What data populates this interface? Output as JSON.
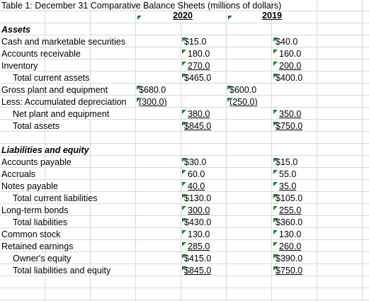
{
  "title": "Table 1: December 31 Comparative Balance Sheets (millions of dollars)",
  "headers": {
    "y2020": "2020",
    "y2019": "2019"
  },
  "sections": {
    "assets": "Assets",
    "liabilities_equity": "Liabilities and equity"
  },
  "rows": {
    "cash": {
      "label": "Cash and marketable securities",
      "v2020": "$15.0",
      "v2019": "$40.0"
    },
    "ar": {
      "label": "Accounts receivable",
      "v2020": "180.0",
      "v2019": "160.0"
    },
    "inventory": {
      "label": "Inventory",
      "v2020": "270.0",
      "v2019": "200.0"
    },
    "tca": {
      "label": "Total current assets",
      "v2020": "$465.0",
      "v2019": "$400.0"
    },
    "gpe": {
      "label": "Gross plant and equipment",
      "v2020": "$680.0",
      "v2019": "$600.0"
    },
    "accdep": {
      "label": "Less: Accumulated depreciation",
      "v2020": "(300.0)",
      "v2019": "(250.0)"
    },
    "npe": {
      "label": "Net plant and equipment",
      "v2020": "380.0",
      "v2019": "350.0"
    },
    "ta": {
      "label": "Total assets",
      "v2020": "$845.0",
      "v2019": "$750.0"
    },
    "ap": {
      "label": "Accounts payable",
      "v2020": "$30.0",
      "v2019": "$15.0"
    },
    "accruals": {
      "label": "Accruals",
      "v2020": "60.0",
      "v2019": "55.0"
    },
    "np": {
      "label": "Notes payable",
      "v2020": "40.0",
      "v2019": "35.0"
    },
    "tcl": {
      "label": "Total current liabilities",
      "v2020": "$130.0",
      "v2019": "$105.0"
    },
    "ltb": {
      "label": "Long-term bonds",
      "v2020": "300.0",
      "v2019": "255.0"
    },
    "tl": {
      "label": "Total liabilities",
      "v2020": "$430.0",
      "v2019": "$360.0"
    },
    "cs": {
      "label": "Common stock",
      "v2020": "130.0",
      "v2019": "130.0"
    },
    "re": {
      "label": "Retained earnings",
      "v2020": "285.0",
      "v2019": "260.0"
    },
    "oe": {
      "label": "Owner's equity",
      "v2020": "$415.0",
      "v2019": "$390.0"
    },
    "tle": {
      "label": "Total liabilities and equity",
      "v2020": "$845.0",
      "v2019": "$750.0"
    }
  },
  "colors": {
    "gridline": "#d9d9d9",
    "error_indicator": "#1a7f2a"
  }
}
